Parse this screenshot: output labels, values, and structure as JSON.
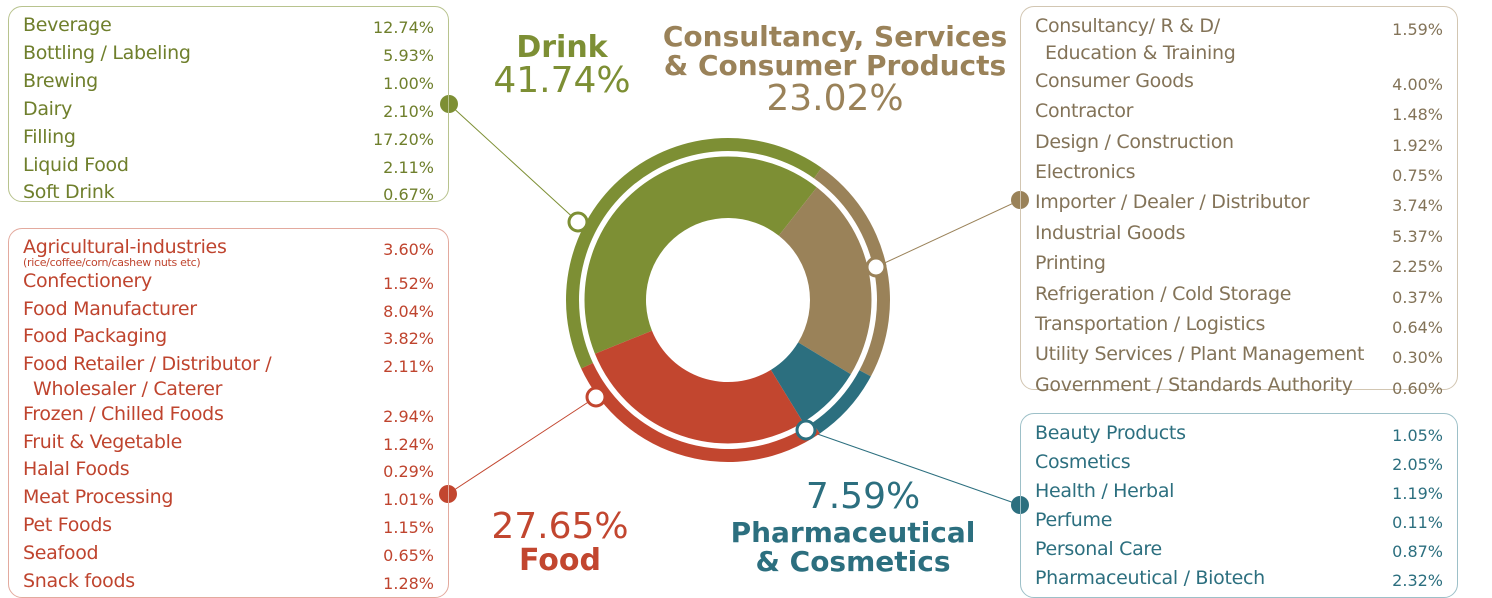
{
  "chart_data": {
    "type": "pie",
    "categories": [
      "Drink",
      "Consultancy, Services & Consumer Products",
      "Pharmaceutical & Cosmetics",
      "Food"
    ],
    "values": [
      41.74,
      23.02,
      7.59,
      27.65
    ],
    "value_labels": [
      "41.74%",
      "23.02%",
      "7.59%",
      "27.65%"
    ],
    "colors": [
      "#7d8f34",
      "#9a8259",
      "#2c6f7f",
      "#c2462f"
    ]
  },
  "breakdowns": [
    {
      "items": [
        {
          "lines": [
            "Beverage"
          ],
          "value": "12.74%"
        },
        {
          "lines": [
            "Bottling / Labeling"
          ],
          "value": "5.93%"
        },
        {
          "lines": [
            "Brewing"
          ],
          "value": "1.00%"
        },
        {
          "lines": [
            "Dairy"
          ],
          "value": "2.10%"
        },
        {
          "lines": [
            "Filling"
          ],
          "value": "17.20%"
        },
        {
          "lines": [
            "Liquid Food"
          ],
          "value": "2.11%"
        },
        {
          "lines": [
            "Soft Drink"
          ],
          "value": "0.67%"
        }
      ]
    },
    {
      "items": [
        {
          "lines": [
            "Consultancy/ R & D/",
            "Education & Training"
          ],
          "value": "1.59%"
        },
        {
          "lines": [
            "Consumer Goods"
          ],
          "value": "4.00%"
        },
        {
          "lines": [
            "Contractor"
          ],
          "value": "1.48%"
        },
        {
          "lines": [
            "Design / Construction"
          ],
          "value": "1.92%"
        },
        {
          "lines": [
            "Electronics"
          ],
          "value": "0.75%"
        },
        {
          "lines": [
            "Importer / Dealer / Distributor"
          ],
          "value": "3.74%"
        },
        {
          "lines": [
            "Industrial Goods"
          ],
          "value": "5.37%"
        },
        {
          "lines": [
            "Printing"
          ],
          "value": "2.25%"
        },
        {
          "lines": [
            "Refrigeration / Cold Storage"
          ],
          "value": "0.37%"
        },
        {
          "lines": [
            "Transportation / Logistics"
          ],
          "value": "0.64%"
        },
        {
          "lines": [
            "Utility Services / Plant Management"
          ],
          "value": "0.30%"
        },
        {
          "lines": [
            "Government / Standards Authority"
          ],
          "value": "0.60%"
        }
      ]
    },
    {
      "items": [
        {
          "lines": [
            "Beauty Products"
          ],
          "value": "1.05%"
        },
        {
          "lines": [
            "Cosmetics"
          ],
          "value": "2.05%"
        },
        {
          "lines": [
            "Health / Herbal"
          ],
          "value": "1.19%"
        },
        {
          "lines": [
            "Perfume"
          ],
          "value": "0.11%"
        },
        {
          "lines": [
            "Personal Care"
          ],
          "value": "0.87%"
        },
        {
          "lines": [
            "Pharmaceutical / Biotech"
          ],
          "value": "2.32%"
        }
      ]
    },
    {
      "items": [
        {
          "lines": [
            "Agricultural-industries"
          ],
          "note": "(rice/coffee/corn/cashew nuts etc)",
          "value": "3.60%"
        },
        {
          "lines": [
            "Confectionery"
          ],
          "value": "1.52%"
        },
        {
          "lines": [
            "Food Manufacturer"
          ],
          "value": "8.04%"
        },
        {
          "lines": [
            "Food Packaging"
          ],
          "value": "3.82%"
        },
        {
          "lines": [
            "Food Retailer / Distributor /",
            "Wholesaler / Caterer"
          ],
          "value": "2.11%"
        },
        {
          "lines": [
            "Frozen / Chilled Foods"
          ],
          "value": "2.94%"
        },
        {
          "lines": [
            "Fruit  & Vegetable"
          ],
          "value": "1.24%"
        },
        {
          "lines": [
            "Halal Foods"
          ],
          "value": "0.29%"
        },
        {
          "lines": [
            "Meat Processing"
          ],
          "value": "1.01%"
        },
        {
          "lines": [
            "Pet Foods"
          ],
          "value": "1.15%"
        },
        {
          "lines": [
            "Seafood"
          ],
          "value": "0.65%"
        },
        {
          "lines": [
            "Snack foods"
          ],
          "value": "1.28%"
        }
      ]
    }
  ]
}
